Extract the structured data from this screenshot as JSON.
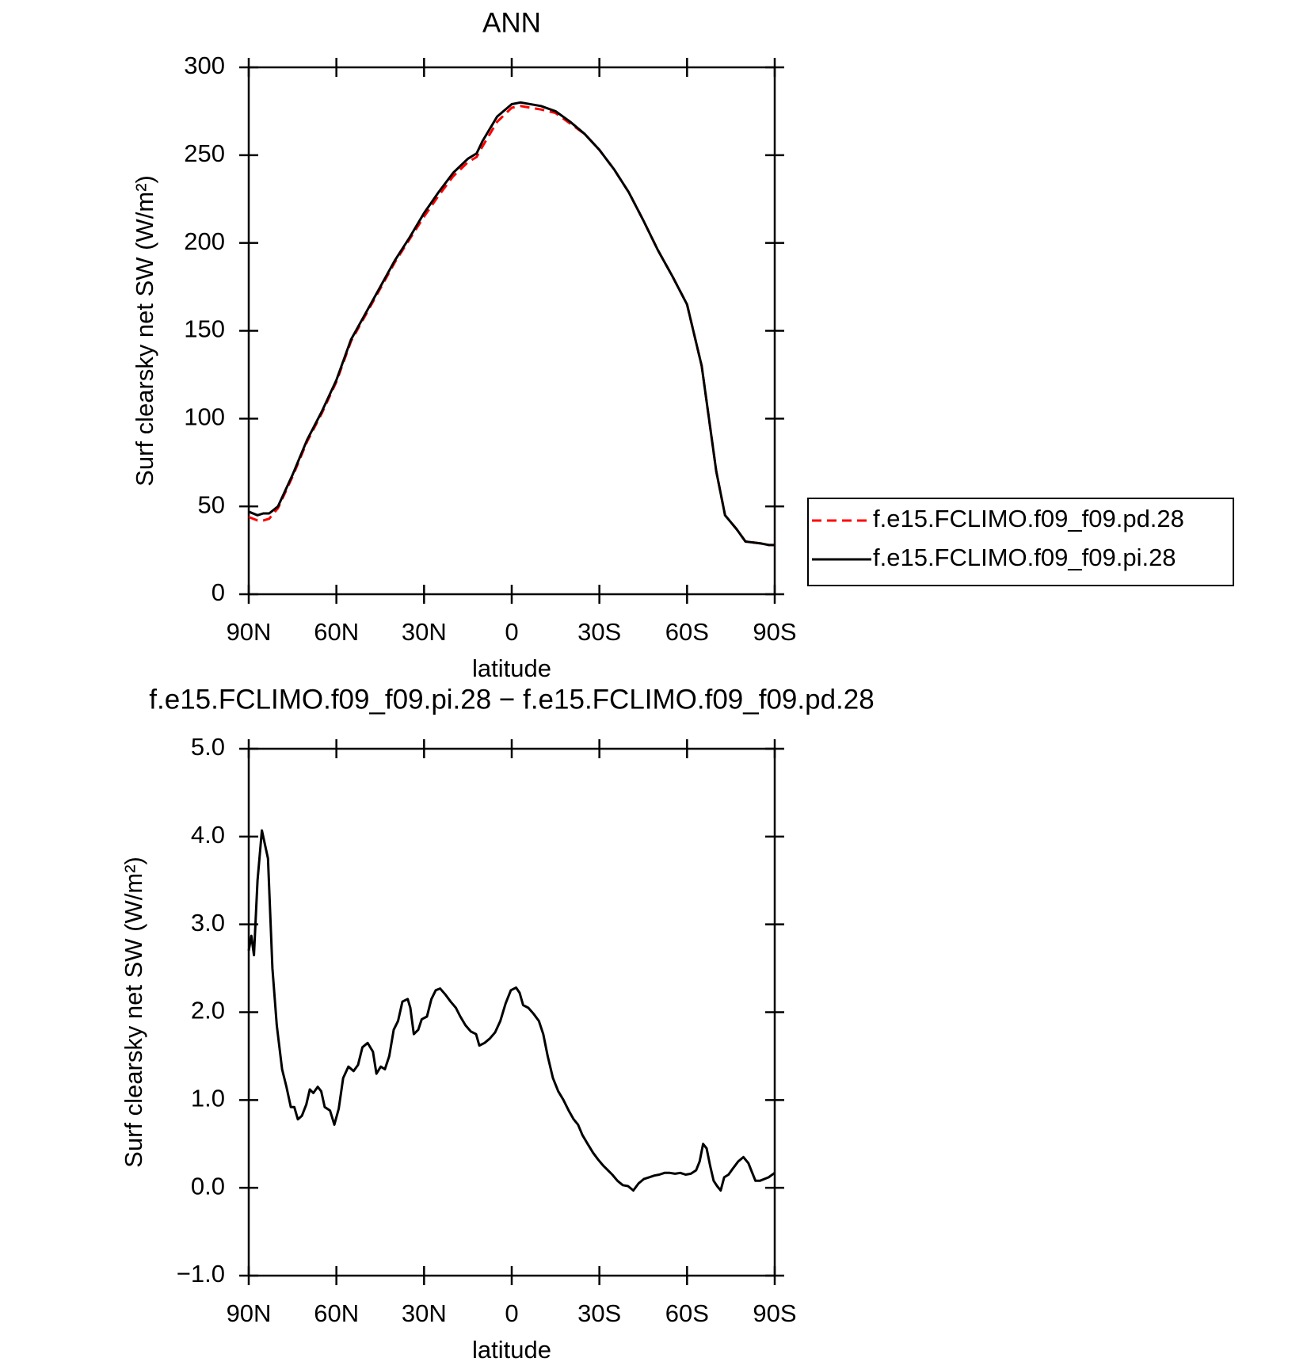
{
  "chart_data": [
    {
      "type": "line",
      "title": "ANN",
      "xlabel": "latitude",
      "ylabel": "Surf clearsky net SW (W/m²)",
      "xlim": [
        90,
        -90
      ],
      "ylim": [
        0,
        300
      ],
      "xticks": [
        {
          "value": 90,
          "label": "90N"
        },
        {
          "value": 60,
          "label": "60N"
        },
        {
          "value": 30,
          "label": "30N"
        },
        0,
        {
          "value": -30,
          "label": "30S"
        },
        {
          "value": -60,
          "label": "60S"
        },
        {
          "value": -90,
          "label": "90S"
        }
      ],
      "yticks": [
        0,
        50,
        100,
        150,
        200,
        250,
        300
      ],
      "legend": "right",
      "x": [
        90,
        87,
        85,
        83,
        80,
        75,
        70,
        65,
        60,
        55,
        50,
        45,
        40,
        35,
        30,
        25,
        20,
        15,
        12,
        10,
        5,
        0,
        -3,
        -10,
        -15,
        -20,
        -25,
        -30,
        -35,
        -40,
        -45,
        -50,
        -55,
        -60,
        -65,
        -70,
        -73,
        -77,
        -80,
        -85,
        -88,
        -90
      ],
      "series": [
        {
          "name": "f.e15.FCLIMO.f09_f09.pd.28",
          "color": "#ff0000",
          "dash": true,
          "values": [
            44,
            42,
            42,
            43,
            49,
            67,
            87,
            103,
            121,
            144,
            159,
            174,
            189,
            202,
            215,
            227,
            238,
            246,
            249,
            255,
            269,
            277,
            278,
            276,
            274,
            268,
            262,
            253,
            242,
            229,
            213,
            196,
            181,
            165,
            130,
            70,
            45,
            37,
            30,
            29,
            28,
            28
          ]
        },
        {
          "name": "f.e15.FCLIMO.f09_f09.pi.28",
          "color": "#000000",
          "dash": false,
          "values": [
            47,
            45,
            46,
            46,
            50,
            68,
            88,
            104,
            122,
            145,
            160,
            175,
            190,
            203,
            217,
            229,
            240,
            248,
            251,
            258,
            272,
            279,
            280,
            278,
            275,
            269,
            262,
            253,
            242,
            229,
            213,
            196,
            181,
            165,
            130,
            70,
            45,
            37,
            30,
            29,
            28,
            28
          ]
        }
      ]
    },
    {
      "type": "line",
      "title": "f.e15.FCLIMO.f09_f09.pi.28 − f.e15.FCLIMO.f09_f09.pd.28",
      "xlabel": "latitude",
      "ylabel": "Surf clearsky net SW (W/m²)",
      "xlim": [
        90,
        -90
      ],
      "ylim": [
        -1,
        5
      ],
      "xticks": [
        {
          "value": 90,
          "label": "90N"
        },
        {
          "value": 60,
          "label": "60N"
        },
        {
          "value": 30,
          "label": "30N"
        },
        0,
        {
          "value": -30,
          "label": "30S"
        },
        {
          "value": -60,
          "label": "60S"
        },
        {
          "value": -90,
          "label": "90S"
        }
      ],
      "yticks": [
        {
          "value": -1,
          "label": "−1.0"
        },
        {
          "value": 0,
          "label": "0.0"
        },
        {
          "value": 1,
          "label": "1.0"
        },
        {
          "value": 2,
          "label": "2.0"
        },
        {
          "value": 3,
          "label": "3.0"
        },
        {
          "value": 4,
          "label": "4.0"
        },
        {
          "value": 5,
          "label": "5.0"
        }
      ],
      "x": [
        90,
        89.1,
        88.2,
        87,
        85.5,
        83.4,
        81.9,
        80.4,
        78.6,
        77.1,
        75.6,
        74.4,
        73.2,
        71.8,
        70.3,
        69.1,
        67.9,
        66.4,
        65.2,
        64,
        62.2,
        60.7,
        59.2,
        57.7,
        55.9,
        54.1,
        52.6,
        51.1,
        49.3,
        47.5,
        46.3,
        44.8,
        43.4,
        41.9,
        40.4,
        38.9,
        37.4,
        35.6,
        34.7,
        33.5,
        32,
        30.8,
        29,
        27.5,
        26,
        24.5,
        22.7,
        20.9,
        19.1,
        17.6,
        15.8,
        14,
        12.2,
        11.1,
        9.3,
        7.5,
        5.7,
        3.9,
        2.1,
        0.3,
        -1.5,
        -2.7,
        -3.9,
        -5.7,
        -7.5,
        -9.3,
        -10.8,
        -12.3,
        -14.1,
        -15.9,
        -17.7,
        -19.5,
        -21.2,
        -22.7,
        -24.2,
        -26,
        -27.8,
        -29.6,
        -31.4,
        -32.9,
        -34.4,
        -36.2,
        -38,
        -39.8,
        -41.6,
        -43.4,
        -45.2,
        -47,
        -48.8,
        -50.5,
        -52.3,
        -54.1,
        -55.9,
        -57.7,
        -59.5,
        -61.3,
        -63.1,
        -64.3,
        -65.5,
        -66.7,
        -67.9,
        -69.1,
        -70.3,
        -71.5,
        -72.7,
        -74.2,
        -75.7,
        -77.5,
        -79.3,
        -81,
        -82.2,
        -83.4,
        -84.9,
        -86.4,
        -87.9,
        -90
      ],
      "color": "#000000",
      "values": [
        2.7,
        2.87,
        2.65,
        3.5,
        4.07,
        3.75,
        2.5,
        1.85,
        1.35,
        1.15,
        0.92,
        0.92,
        0.78,
        0.82,
        0.95,
        1.12,
        1.08,
        1.15,
        1.1,
        0.92,
        0.88,
        0.72,
        0.9,
        1.25,
        1.38,
        1.33,
        1.4,
        1.6,
        1.65,
        1.55,
        1.3,
        1.38,
        1.35,
        1.5,
        1.8,
        1.9,
        2.12,
        2.15,
        2.05,
        1.75,
        1.8,
        1.92,
        1.95,
        2.15,
        2.25,
        2.27,
        2.2,
        2.12,
        2.05,
        1.95,
        1.85,
        1.78,
        1.75,
        1.62,
        1.65,
        1.7,
        1.77,
        1.9,
        2.1,
        2.25,
        2.28,
        2.22,
        2.08,
        2.05,
        1.98,
        1.9,
        1.75,
        1.5,
        1.25,
        1.1,
        1,
        0.88,
        0.78,
        0.72,
        0.6,
        0.5,
        0.4,
        0.32,
        0.25,
        0.2,
        0.15,
        0.08,
        0.03,
        0.02,
        -0.03,
        0.05,
        0.1,
        0.12,
        0.14,
        0.15,
        0.17,
        0.17,
        0.16,
        0.17,
        0.15,
        0.16,
        0.2,
        0.3,
        0.5,
        0.45,
        0.25,
        0.08,
        0.02,
        -0.03,
        0.12,
        0.15,
        0.22,
        0.3,
        0.35,
        0.28,
        0.18,
        0.08,
        0.08,
        0.1,
        0.12,
        0.17
      ]
    }
  ]
}
